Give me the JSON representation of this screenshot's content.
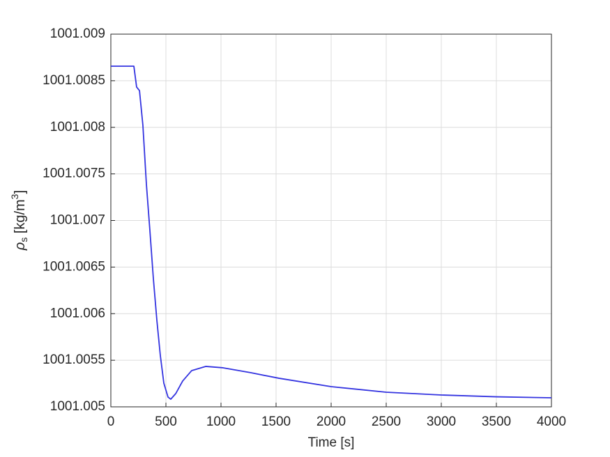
{
  "chart_data": {
    "type": "line",
    "xlabel": "Time [s]",
    "ylabel_parts": [
      "ρ",
      "s",
      " [kg/m",
      "3",
      "]"
    ],
    "x": [
      0,
      209,
      234,
      260,
      291,
      323,
      354,
      386,
      418,
      449,
      481,
      519,
      544,
      589,
      652,
      734,
      861,
      1019,
      1272,
      1525,
      2000,
      2500,
      3000,
      3500,
      4000
    ],
    "series": [
      {
        "name": "rho_s",
        "color": "#3333e0",
        "values": [
          1001.008656,
          1001.008656,
          1001.008432,
          1001.008394,
          1001.00802,
          1001.007385,
          1001.0069,
          1001.006376,
          1001.005927,
          1001.005553,
          1001.005254,
          1001.005105,
          1001.005082,
          1001.005142,
          1001.005277,
          1001.005389,
          1001.005434,
          1001.005419,
          1001.005366,
          1001.005307,
          1001.005217,
          1001.005157,
          1001.005127,
          1001.005108,
          1001.005097
        ]
      }
    ],
    "xlim": [
      0,
      4000
    ],
    "xticks": [
      0,
      500,
      1000,
      1500,
      2000,
      2500,
      3000,
      3500,
      4000
    ],
    "ylim": [
      1001.005,
      1001.009
    ],
    "yticks": [
      1001.005,
      1001.0055,
      1001.006,
      1001.0065,
      1001.007,
      1001.0075,
      1001.008,
      1001.0085,
      1001.009
    ],
    "grid": true
  }
}
